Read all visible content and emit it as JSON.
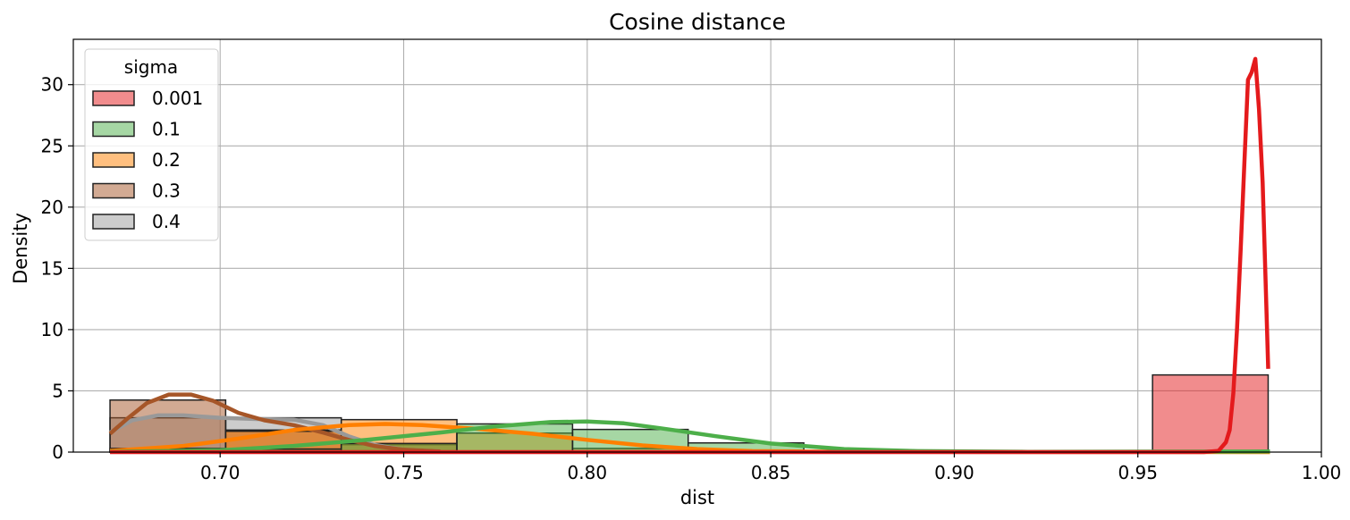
{
  "chart_data": {
    "type": "histogram",
    "title": "Cosine distance",
    "xlabel": "dist",
    "ylabel": "Density",
    "xlim": [
      0.66,
      1.0
    ],
    "ylim": [
      0,
      33.7
    ],
    "xticks": [
      "0.70",
      "0.75",
      "0.80",
      "0.85",
      "0.90",
      "0.95",
      "1.00"
    ],
    "xtick_values": [
      0.7,
      0.75,
      0.8,
      0.85,
      0.9,
      0.95,
      1.0
    ],
    "yticks": [
      "0",
      "5",
      "10",
      "15",
      "20",
      "25",
      "30"
    ],
    "ytick_values": [
      0,
      5,
      10,
      15,
      20,
      25,
      30
    ],
    "grid": true,
    "legend": {
      "title": "sigma",
      "position": "top-left"
    },
    "bin_edges": [
      0.67,
      0.7015,
      0.733,
      0.7645,
      0.796,
      0.8275,
      0.859
    ],
    "series": [
      {
        "name": "0.001",
        "color": "#e41a1c",
        "bins": [
          {
            "start": 0.954,
            "end": 0.9855,
            "density": 6.3
          }
        ],
        "kde_x": [
          0.67,
          0.95,
          0.968,
          0.972,
          0.974,
          0.975,
          0.976,
          0.977,
          0.978,
          0.979,
          0.98,
          0.981,
          0.982,
          0.983,
          0.984,
          0.985,
          0.9855
        ],
        "kde_y": [
          0,
          0,
          0,
          0.1,
          0.8,
          1.8,
          4.8,
          10.0,
          16.5,
          23.5,
          30.4,
          31.0,
          32.1,
          28.0,
          22.0,
          12.0,
          6.8
        ]
      },
      {
        "name": "0.1",
        "color": "#4daf4a",
        "bins": [
          {
            "start": 0.67,
            "end": 0.7015,
            "density": 0.05
          },
          {
            "start": 0.7015,
            "end": 0.733,
            "density": 0.25
          },
          {
            "start": 0.733,
            "end": 0.7645,
            "density": 0.7
          },
          {
            "start": 0.7645,
            "end": 0.796,
            "density": 2.3
          },
          {
            "start": 0.796,
            "end": 0.8275,
            "density": 1.85
          },
          {
            "start": 0.8275,
            "end": 0.859,
            "density": 0.75
          }
        ],
        "kde_x": [
          0.67,
          0.7,
          0.72,
          0.74,
          0.76,
          0.775,
          0.79,
          0.8,
          0.81,
          0.82,
          0.835,
          0.85,
          0.87,
          0.89,
          0.92,
          0.986
        ],
        "kde_y": [
          0.02,
          0.15,
          0.5,
          1.0,
          1.6,
          2.1,
          2.45,
          2.5,
          2.35,
          1.95,
          1.3,
          0.7,
          0.25,
          0.08,
          0.02,
          0.05
        ]
      },
      {
        "name": "0.2",
        "color": "#ff7f00",
        "bins": [
          {
            "start": 0.67,
            "end": 0.7015,
            "density": 0.3
          },
          {
            "start": 0.7015,
            "end": 0.733,
            "density": 1.7
          },
          {
            "start": 0.733,
            "end": 0.7645,
            "density": 2.65
          },
          {
            "start": 0.7645,
            "end": 0.796,
            "density": 1.55
          },
          {
            "start": 0.796,
            "end": 0.8275,
            "density": 0.3
          }
        ],
        "kde_x": [
          0.67,
          0.69,
          0.705,
          0.72,
          0.735,
          0.745,
          0.755,
          0.77,
          0.785,
          0.8,
          0.815,
          0.83,
          0.845,
          0.87,
          0.986
        ],
        "kde_y": [
          0.1,
          0.5,
          1.1,
          1.8,
          2.2,
          2.3,
          2.2,
          1.9,
          1.5,
          1.0,
          0.55,
          0.25,
          0.08,
          0.02,
          0.0
        ]
      },
      {
        "name": "0.3",
        "color": "#a65628",
        "bins": [
          {
            "start": 0.67,
            "end": 0.7015,
            "density": 4.25
          },
          {
            "start": 0.7015,
            "end": 0.733,
            "density": 1.8
          },
          {
            "start": 0.733,
            "end": 0.7645,
            "density": 0.6
          }
        ],
        "kde_x": [
          0.67,
          0.675,
          0.68,
          0.686,
          0.692,
          0.698,
          0.705,
          0.712,
          0.72,
          0.728,
          0.735,
          0.742,
          0.75,
          0.76
        ],
        "kde_y": [
          1.5,
          2.8,
          4.0,
          4.7,
          4.7,
          4.2,
          3.2,
          2.6,
          2.2,
          1.6,
          1.0,
          0.5,
          0.2,
          0.05
        ]
      },
      {
        "name": "0.4",
        "color": "#999999",
        "bins": [
          {
            "start": 0.67,
            "end": 0.7015,
            "density": 2.8
          },
          {
            "start": 0.7015,
            "end": 0.733,
            "density": 2.8
          },
          {
            "start": 0.733,
            "end": 0.7645,
            "density": 0.7
          }
        ],
        "kde_x": [
          0.67,
          0.676,
          0.683,
          0.69,
          0.7,
          0.71,
          0.72,
          0.728,
          0.735,
          0.742,
          0.75,
          0.76
        ],
        "kde_y": [
          1.6,
          2.6,
          3.0,
          3.0,
          2.8,
          2.7,
          2.65,
          2.2,
          1.3,
          0.6,
          0.2,
          0.05
        ]
      }
    ]
  }
}
